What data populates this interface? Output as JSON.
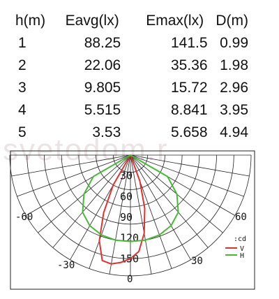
{
  "table": {
    "headers": [
      "h(m)",
      "Eavg(lx)",
      "Emax(lx)",
      "D(m)"
    ],
    "rows": [
      [
        "1",
        "88.25",
        "141.5",
        "0.99"
      ],
      [
        "2",
        "22.06",
        "35.36",
        "1.98"
      ],
      [
        "3",
        "9.805",
        "15.72",
        "2.96"
      ],
      [
        "4",
        "5.515",
        "8.841",
        "3.95"
      ],
      [
        "5",
        "3.53",
        "5.658",
        "4.94"
      ]
    ]
  },
  "watermark": "svetodom.r",
  "chart_data": {
    "type": "polar",
    "unit_label": ":cd",
    "radial_ticks": [
      "30",
      "60",
      "90",
      "120",
      "150"
    ],
    "radial_values": [
      30,
      60,
      90,
      120,
      150
    ],
    "rmax": 175,
    "angle_labels": [
      "-60",
      "60",
      "-30",
      "30",
      "0"
    ],
    "grid": true,
    "legend_position": "bottom-right",
    "series": [
      {
        "name": "V",
        "color": "#e03030",
        "angles": [
          -35,
          -30,
          -25,
          -20,
          -15,
          -10,
          -5,
          0,
          5,
          10,
          15,
          20,
          25
        ],
        "values": [
          0,
          50,
          92,
          132,
          158,
          160,
          156,
          150,
          140,
          115,
          80,
          40,
          0
        ]
      },
      {
        "name": "H",
        "color": "#44bb33",
        "angles": [
          -70,
          -60,
          -50,
          -40,
          -30,
          -20,
          -10,
          0,
          10,
          20,
          30,
          40,
          50,
          60,
          70
        ],
        "values": [
          0,
          62,
          88,
          108,
          118,
          123,
          125,
          125,
          125,
          123,
          118,
          108,
          88,
          62,
          0
        ]
      }
    ]
  }
}
